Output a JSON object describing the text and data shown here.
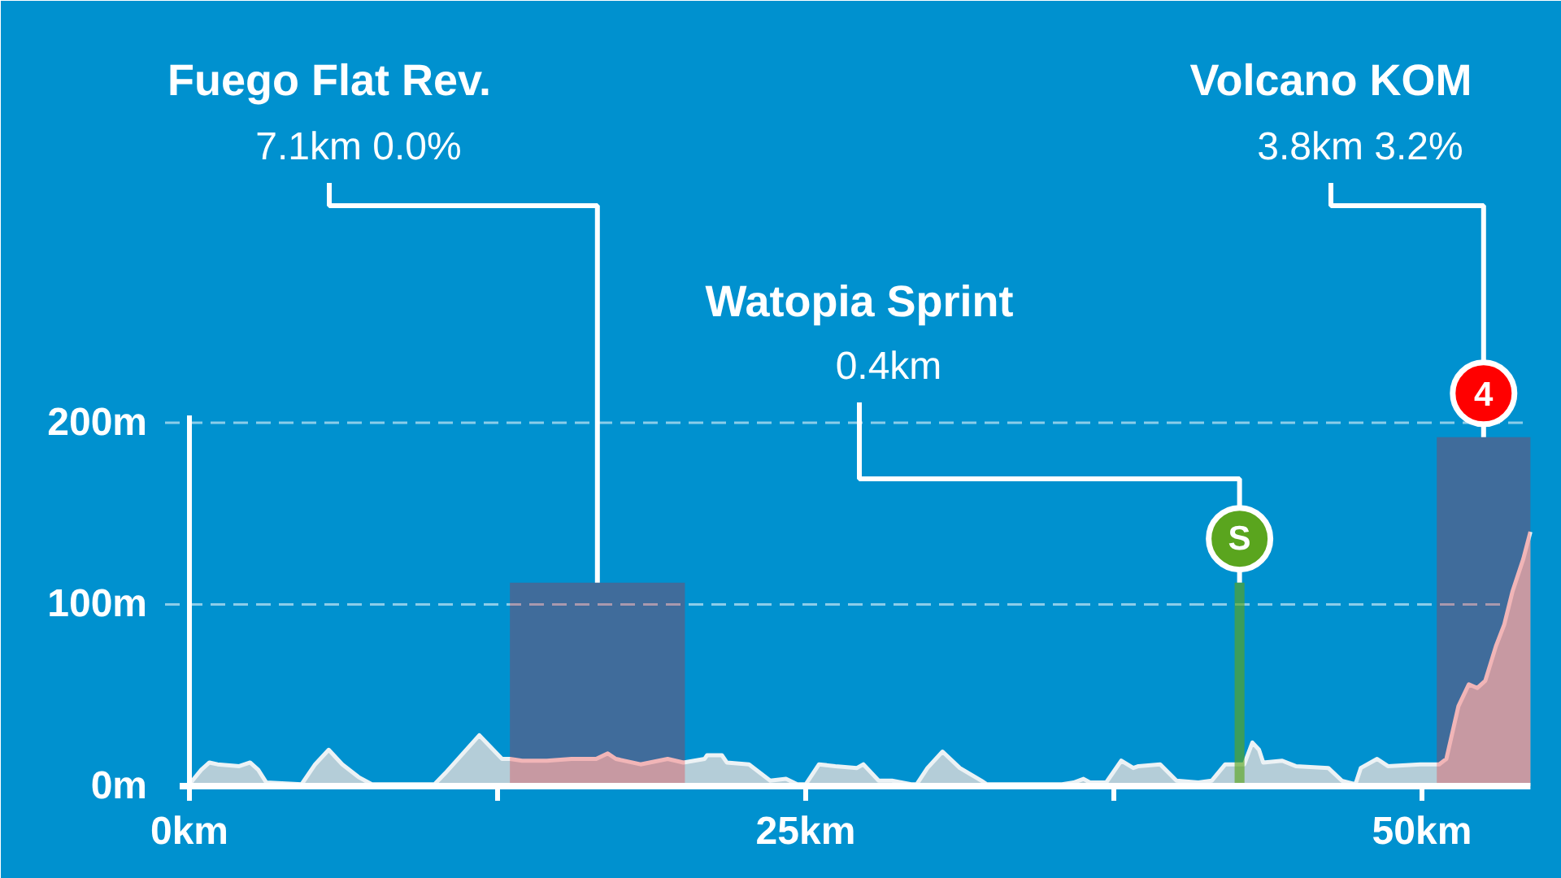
{
  "chart_data": {
    "type": "area",
    "color": "#b4cdd8",
    "x": [
      0,
      0.48,
      0.81,
      1.14,
      2.02,
      2.46,
      2.79,
      3.12,
      4.55,
      5.1,
      5.65,
      6.2,
      6.86,
      7.4,
      9.94,
      10.37,
      11.76,
      12.68,
      13.0,
      13.5,
      14.5,
      15.5,
      16.5,
      16.97,
      17.3,
      18.3,
      19.4,
      20.04,
      20.9,
      21.0,
      21.6,
      21.8,
      22.7,
      23.56,
      24.2,
      24.66,
      25.0,
      25.54,
      26.2,
      27.08,
      27.34,
      27.96,
      28.5,
      29.28,
      29.5,
      29.94,
      30.55,
      31.25,
      32.13,
      32.35,
      35.4,
      35.87,
      36.27,
      36.53,
      37.19,
      37.8,
      38.29,
      38.5,
      39.38,
      40.04,
      40.93,
      41.47,
      42.02,
      42.79,
      43.12,
      43.39,
      43.56,
      44.33,
      44.88,
      46.2,
      46.75,
      47.3,
      47.52,
      48.18,
      48.62,
      49.93,
      50.7,
      50.99,
      51.48,
      51.9,
      52.24,
      52.57,
      53.0,
      53.34,
      53.67,
      54.11,
      54.4
    ],
    "values": [
      1,
      9,
      13,
      12,
      11,
      13,
      9,
      2,
      1,
      12,
      20,
      12,
      5,
      1,
      1,
      7,
      28,
      15,
      15,
      14,
      14,
      15,
      15,
      18,
      15,
      12,
      15,
      13,
      15,
      17,
      17,
      13,
      12,
      3,
      4,
      1,
      1,
      12,
      11,
      10,
      12,
      3,
      3,
      1,
      1,
      10,
      19,
      10,
      3,
      1,
      1,
      2,
      4,
      2,
      2,
      14,
      10,
      11,
      12,
      3,
      2,
      3,
      12,
      12,
      24,
      20,
      13,
      14,
      11,
      10,
      3,
      1,
      10,
      15,
      11,
      12,
      12,
      15,
      44,
      56,
      54,
      58,
      77,
      89,
      107,
      125,
      140
    ],
    "xlim": [
      0,
      54.4
    ],
    "xticks": [
      {
        "value": 0,
        "label": "0km"
      },
      {
        "value": 12.5,
        "label": null
      },
      {
        "value": 25,
        "label": "25km"
      },
      {
        "value": 37.5,
        "label": null
      },
      {
        "value": 50,
        "label": "50km"
      }
    ],
    "ylim": [
      0,
      204
    ],
    "yticks": [
      {
        "value": 0,
        "label": "0m"
      },
      {
        "value": 100,
        "label": "100m"
      },
      {
        "value": 200,
        "label": "200m"
      }
    ],
    "grid": "y",
    "bands": [
      {
        "axis": "x",
        "from": 13.0,
        "to": 20.1,
        "color": "#ff0000"
      },
      {
        "axis": "x",
        "from": 42.4,
        "to": 42.8,
        "label": "S",
        "color": "#5aa51e"
      },
      {
        "axis": "x",
        "from": 50.6,
        "to": 54.4,
        "label": "4",
        "color": "#ff0000"
      }
    ],
    "annotations": [
      {
        "text": "Fuego Flat Rev.\n7.1km 0.0%",
        "x": 16.55,
        "y": 112
      },
      {
        "text": "Watopia Sprint\n0.4km",
        "x": 42.6,
        "y": 112
      },
      {
        "text": "Volcano KOM\n3.8km 3.2%",
        "x": 52.5,
        "y": 192
      }
    ]
  }
}
